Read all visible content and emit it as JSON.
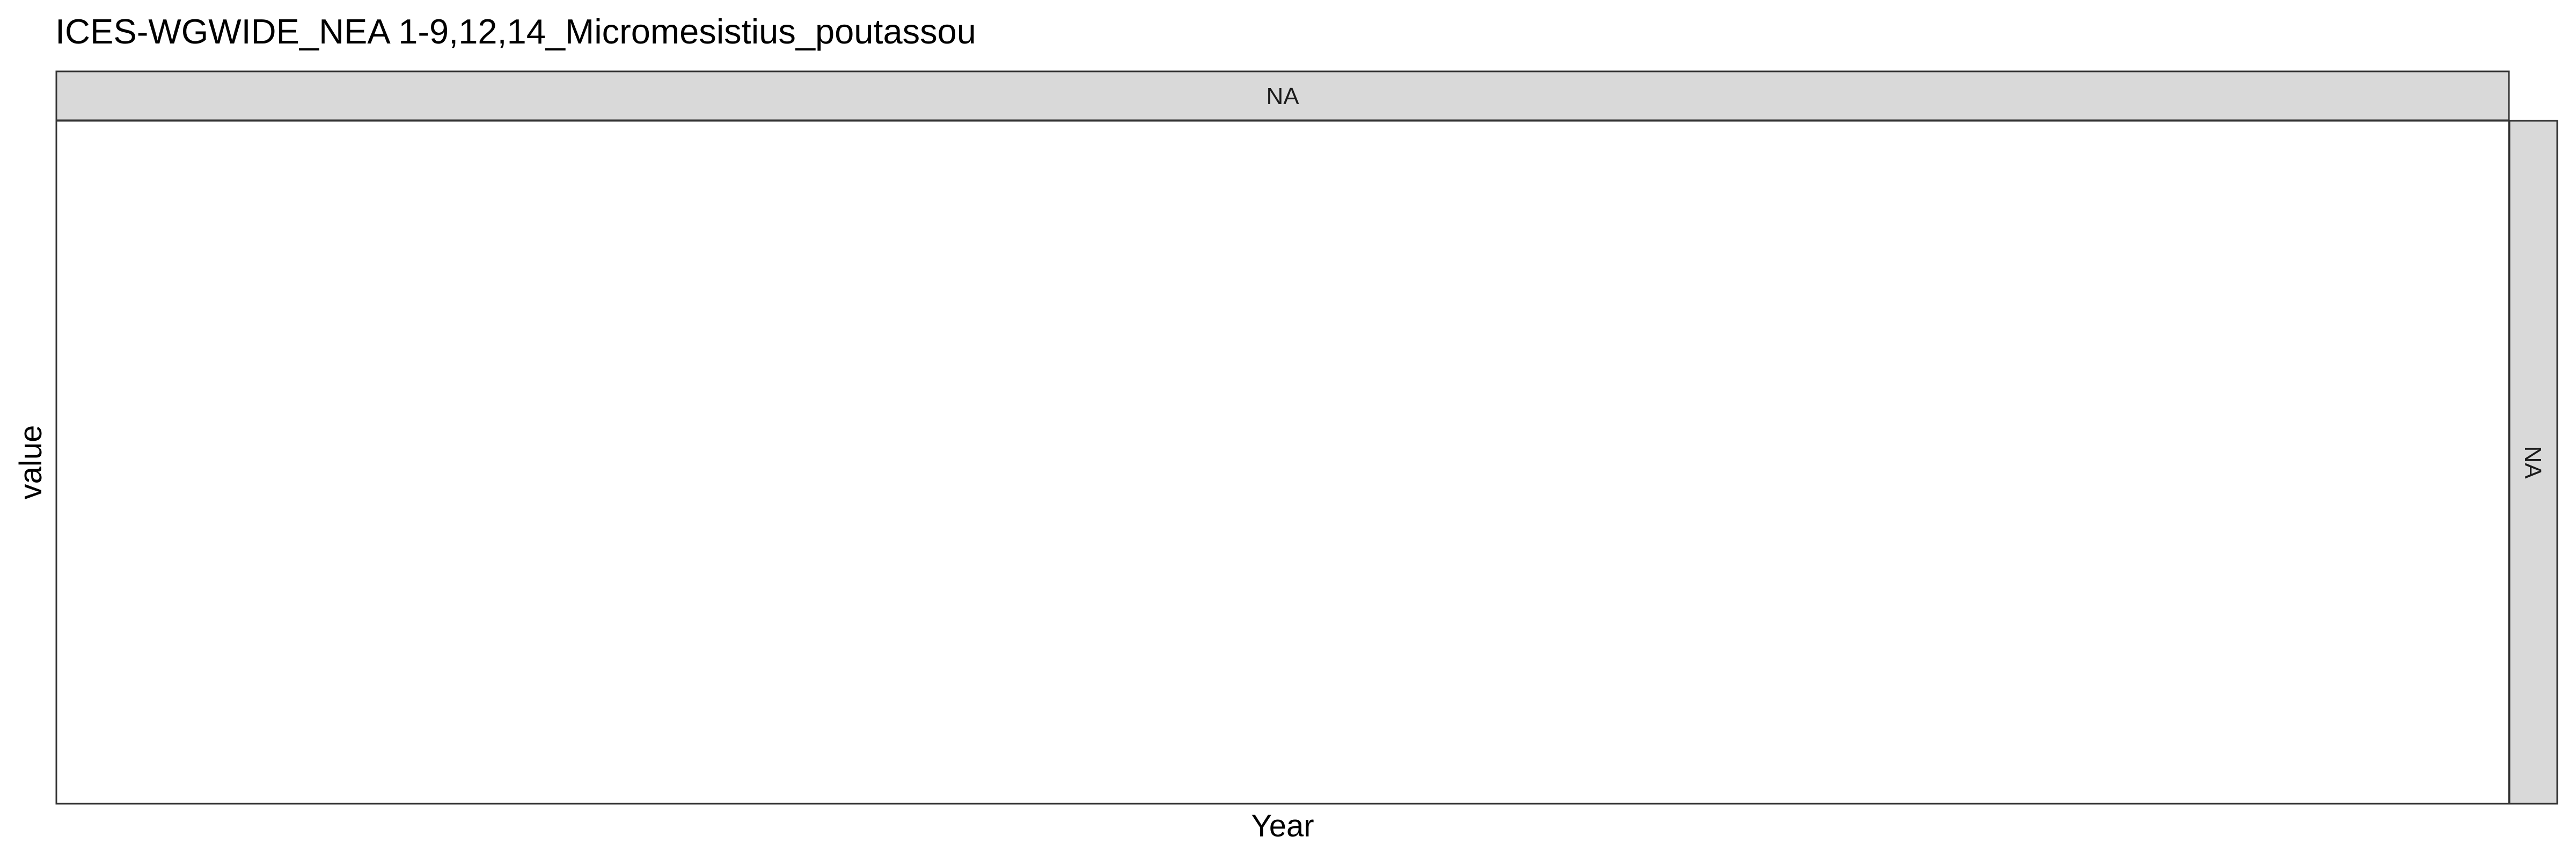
{
  "chart_data": {
    "type": "line",
    "title": "ICES-WGWIDE_NEA 1-9,12,14_Micromesistius_poutassou",
    "xlabel": "Year",
    "ylabel": "value",
    "facet_column_strip": "NA",
    "facet_row_strip": "NA",
    "series": [],
    "grid": false,
    "legend": "none"
  },
  "colors": {
    "strip_fill": "#d9d9d9",
    "panel_border": "#333333",
    "panel_fill": "#ffffff",
    "text": "#000000"
  }
}
